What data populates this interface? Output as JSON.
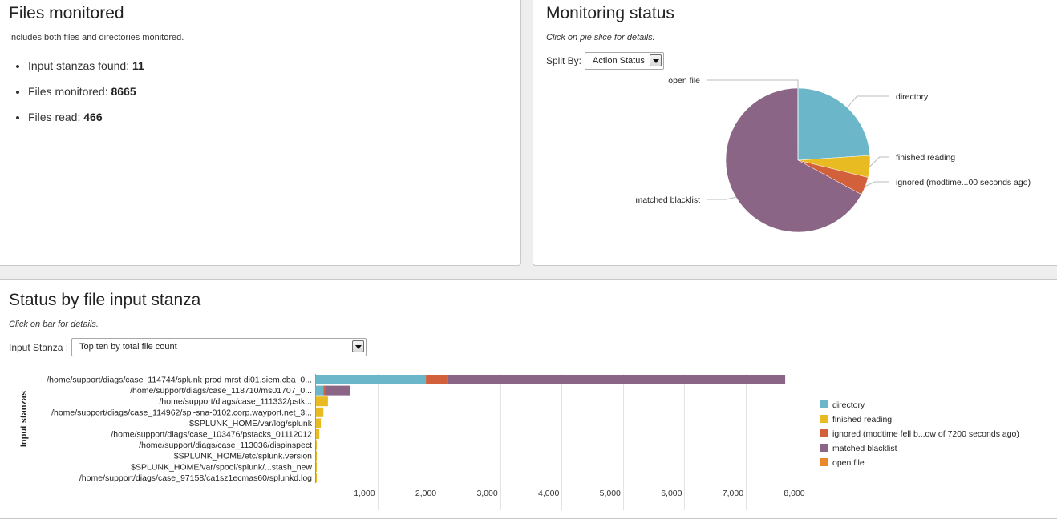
{
  "files_monitored": {
    "title": "Files monitored",
    "subtitle": "Includes both files and directories monitored.",
    "stats": [
      {
        "label": "Input stanzas found: ",
        "value": "11"
      },
      {
        "label": "Files monitored: ",
        "value": "8665"
      },
      {
        "label": "Files read: ",
        "value": "466"
      }
    ]
  },
  "monitoring_status": {
    "title": "Monitoring status",
    "hint": "Click on pie slice for details.",
    "split_by_label": "Split By:",
    "split_by_value": "Action Status"
  },
  "status_by_stanza": {
    "title": "Status by file input stanza",
    "hint": "Click on bar for details.",
    "input_stanza_label": "Input Stanza :",
    "input_stanza_value": "Top ten by total file count"
  },
  "colors": {
    "directory": "#6bb6c8",
    "finished_reading": "#e8bb22",
    "ignored": "#d2603a",
    "matched_blacklist": "#8b6585",
    "open_file": "#e88a2b"
  },
  "chart_data": [
    {
      "type": "pie",
      "slices": [
        {
          "label": "directory",
          "value": 2075,
          "color": "#6bb6c8"
        },
        {
          "label": "finished reading",
          "value": 425,
          "color": "#e8bb22"
        },
        {
          "label": "ignored (modtime...00 seconds ago)",
          "value": 350,
          "color": "#d2603a"
        },
        {
          "label": "matched blacklist",
          "value": 5813,
          "color": "#8b6585"
        },
        {
          "label": "open file",
          "value": 2,
          "color": "#e88a2b"
        }
      ]
    },
    {
      "type": "bar",
      "orientation": "horizontal",
      "stacked": true,
      "ylabel": "Input stanzas",
      "xlim": [
        0,
        8000
      ],
      "xticks": [
        1000,
        2000,
        3000,
        4000,
        5000,
        6000,
        7000,
        8000
      ],
      "xtick_labels": [
        "1,000",
        "2,000",
        "3,000",
        "4,000",
        "5,000",
        "6,000",
        "7,000",
        "8,000"
      ],
      "categories": [
        "/home/support/diags/case_114744/splunk-prod-mrst-di01.siem.cba_0...",
        "/home/support/diags/case_118710/ms01707_0...",
        "/home/support/diags/case_111332/pstk...",
        "/home/support/diags/case_114962/spl-sna-0102.corp.wayport.net_3...",
        "$SPLUNK_HOME/var/log/splunk",
        "/home/support/diags/case_103476/pstacks_01112012",
        "/home/support/diags/case_113036/dispinspect",
        "$SPLUNK_HOME/etc/splunk.version",
        "$SPLUNK_HOME/var/spool/splunk/...stash_new",
        "/home/support/diags/case_97158/ca1sz1ecmas60/splunkd.log"
      ],
      "series": [
        {
          "name": "directory",
          "color": "#6bb6c8",
          "values": [
            1790,
            120,
            0,
            0,
            0,
            0,
            0,
            0,
            0,
            0
          ]
        },
        {
          "name": "finished reading",
          "color": "#e8bb22",
          "values": [
            0,
            0,
            195,
            120,
            80,
            55,
            10,
            5,
            3,
            2
          ]
        },
        {
          "name": "ignored (modtime fell b...ow of 7200 seconds ago)",
          "color": "#d2603a",
          "values": [
            350,
            40,
            0,
            0,
            0,
            0,
            0,
            0,
            0,
            0
          ]
        },
        {
          "name": "matched blacklist",
          "color": "#8b6585",
          "values": [
            5500,
            400,
            0,
            0,
            0,
            0,
            0,
            0,
            0,
            0
          ]
        },
        {
          "name": "open file",
          "color": "#e88a2b",
          "values": [
            0,
            0,
            0,
            0,
            0,
            0,
            0,
            0,
            0,
            0
          ]
        }
      ]
    }
  ]
}
